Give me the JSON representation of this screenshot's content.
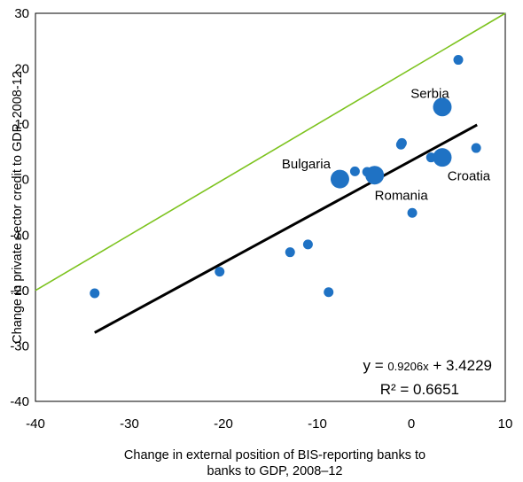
{
  "chart_data": {
    "type": "scatter",
    "xlabel_lines": [
      "Change in external position of BIS-reporting banks to",
      "banks to GDP,  2008–12"
    ],
    "ylabel": "Change in private sector credit to GDP,  2008-12",
    "xlim": [
      -40,
      10
    ],
    "ylim": [
      -40,
      30
    ],
    "xticks": [
      -40,
      -30,
      -20,
      -10,
      0,
      10
    ],
    "yticks": [
      -40,
      -30,
      -20,
      -10,
      0,
      10,
      20,
      30
    ],
    "grid": false,
    "colors": {
      "points": "#1f72c4",
      "trendline": "#000000",
      "diagonal": "#7dc31f"
    },
    "points": [
      {
        "x": -33.7,
        "y": -20.5,
        "size": "small"
      },
      {
        "x": -20.4,
        "y": -16.6,
        "size": "small"
      },
      {
        "x": -12.9,
        "y": -13.1,
        "size": "small"
      },
      {
        "x": -11.0,
        "y": -11.7,
        "size": "small"
      },
      {
        "x": -8.8,
        "y": -20.3,
        "size": "small"
      },
      {
        "x": -7.6,
        "y": 0.1,
        "size": "large",
        "label": "Bulgaria"
      },
      {
        "x": -6.0,
        "y": 1.5,
        "size": "small"
      },
      {
        "x": -4.7,
        "y": 1.4,
        "size": "small"
      },
      {
        "x": -3.9,
        "y": 0.8,
        "size": "large",
        "label": "Romania"
      },
      {
        "x": -1.0,
        "y": 6.6,
        "size": "small"
      },
      {
        "x": -1.1,
        "y": 6.3,
        "size": "small"
      },
      {
        "x": 0.1,
        "y": -6.0,
        "size": "small"
      },
      {
        "x": 2.1,
        "y": 4.0,
        "size": "small"
      },
      {
        "x": 3.3,
        "y": 4.0,
        "size": "large",
        "label": "Croatia"
      },
      {
        "x": 3.3,
        "y": 13.1,
        "size": "large",
        "label": "Serbia"
      },
      {
        "x": 5.0,
        "y": 21.6,
        "size": "small"
      },
      {
        "x": 6.9,
        "y": 5.7,
        "size": "small"
      }
    ],
    "trendline": {
      "slope": 0.9206,
      "intercept": 3.4229,
      "x_range": [
        -33.7,
        7.0
      ]
    },
    "diagonal": {
      "x_range": [
        -40,
        10
      ],
      "description": "45-degree line y = x + 20"
    },
    "equation": {
      "prefix": "y = ",
      "coef": "0.9206x",
      "rest": " + 3.4229"
    },
    "r2_text": "R² = 0.6651"
  }
}
